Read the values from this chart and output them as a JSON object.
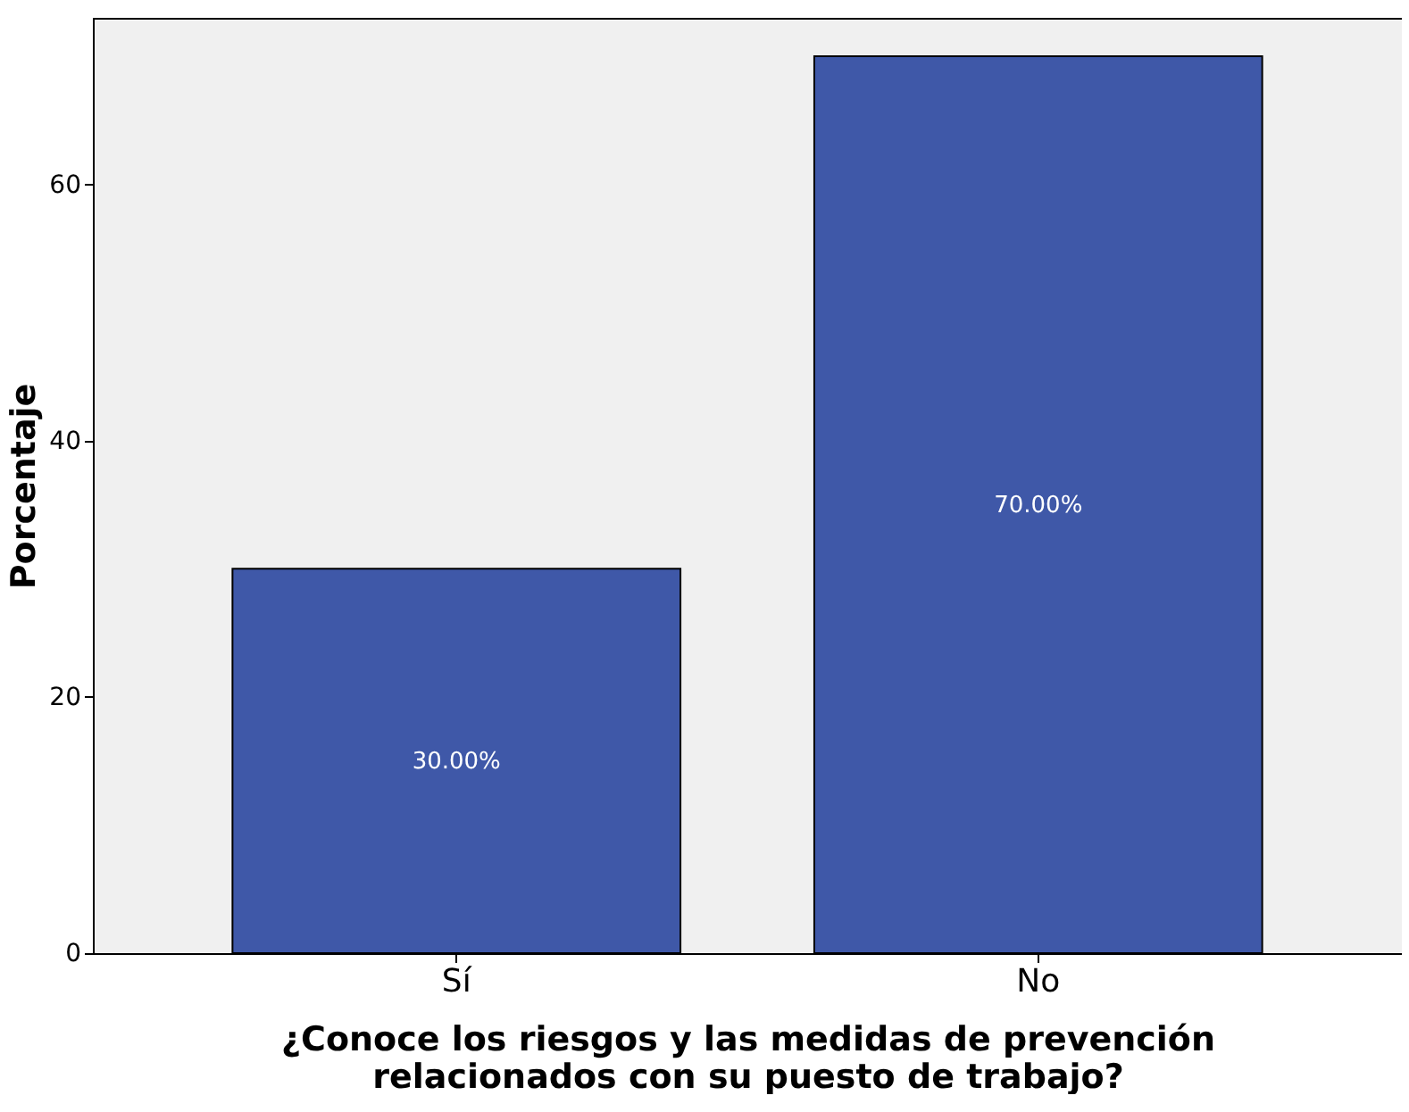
{
  "chart_data": {
    "type": "bar",
    "xlabel": "¿Conoce los riesgos y las medidas de prevención relacionados con su puesto de trabajo?",
    "ylabel": "Porcentaje",
    "categories": [
      "Sí",
      "No"
    ],
    "values": [
      30,
      70
    ],
    "value_labels": [
      "30.00%",
      "70.00%"
    ],
    "color": "#3f58a8",
    "ylim": [
      0,
      73
    ],
    "yticks": [
      0,
      20,
      40,
      60
    ],
    "grid": false
  }
}
